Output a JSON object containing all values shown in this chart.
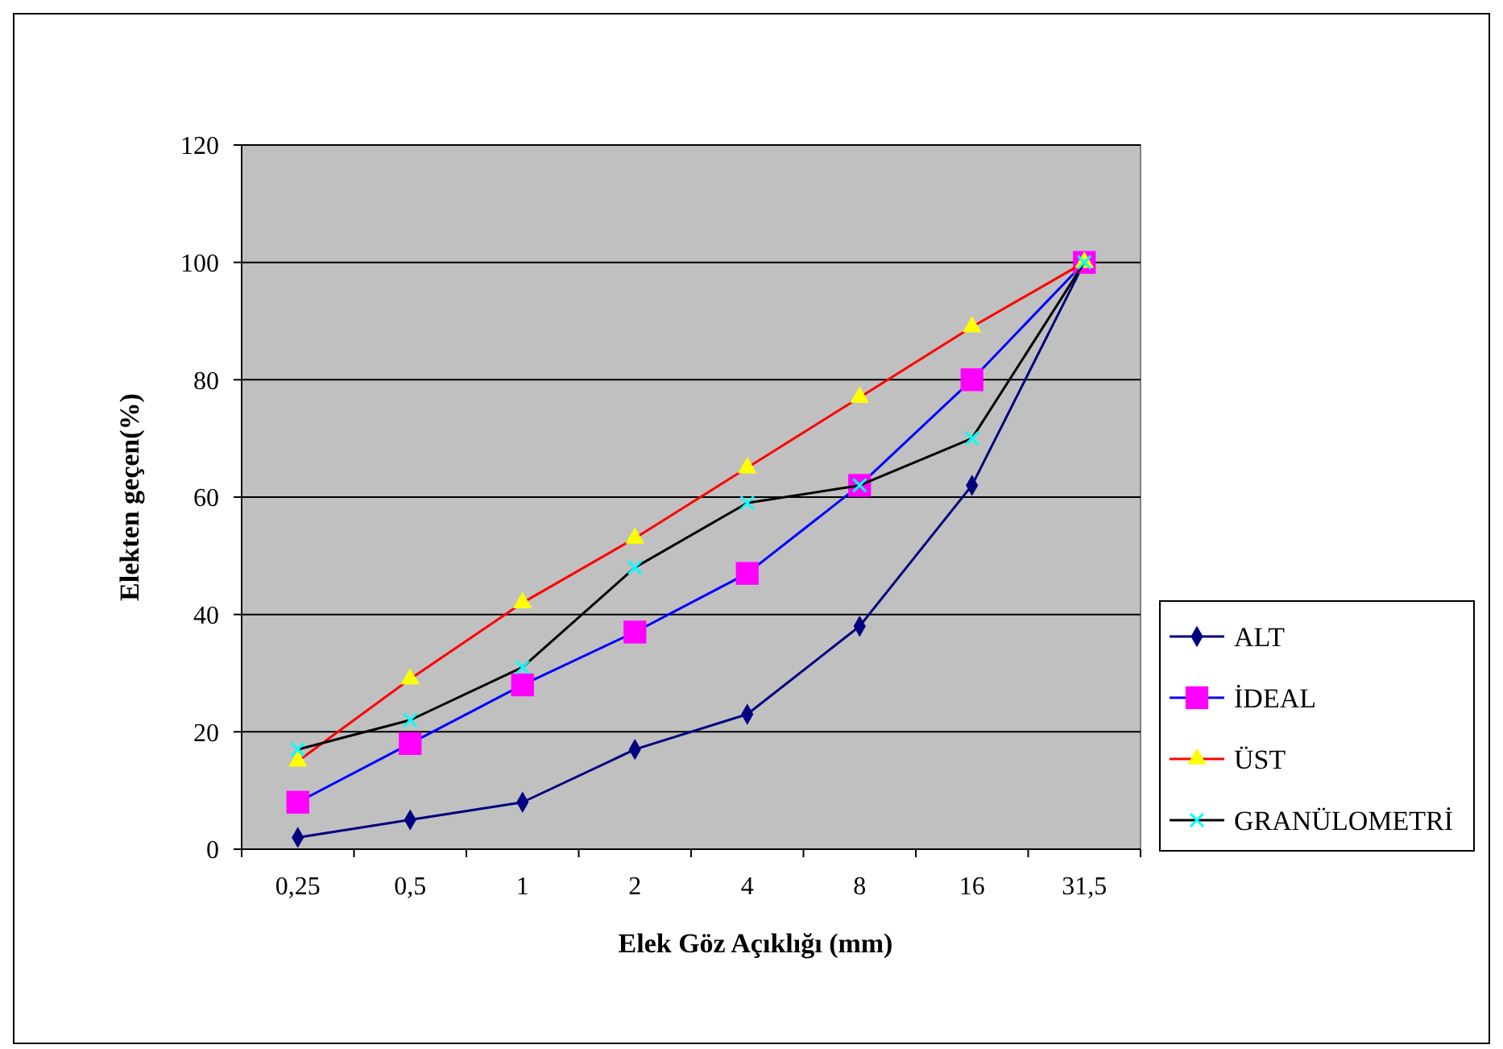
{
  "chart_data": {
    "type": "line",
    "xlabel": "Elek Göz Açıklığı (mm)",
    "ylabel": "Elekten geçen(%)",
    "categories": [
      "0,25",
      "0,5",
      "1",
      "2",
      "4",
      "8",
      "16",
      "31,5"
    ],
    "ylim": [
      0,
      120
    ],
    "yticks": [
      0,
      20,
      40,
      60,
      80,
      100,
      120
    ],
    "grid": "y",
    "legend": "right",
    "line_style": "solid",
    "series": [
      {
        "name": "ALT",
        "color": "#000080",
        "marker": "diamond",
        "colors": [
          "#000080",
          "#000080",
          "#000080",
          "#000080",
          "#000080",
          "#000080",
          "#000080",
          "#000080"
        ],
        "values": [
          2,
          5,
          8,
          17,
          23,
          38,
          62,
          100
        ]
      },
      {
        "name": "İDEAL",
        "color": "#0000ff",
        "marker": "square",
        "colors": [
          "#ff00ff",
          "#ff00ff",
          "#ff00ff",
          "#ff00ff",
          "#ff00ff",
          "#ff00ff",
          "#ff00ff",
          "#ff00ff"
        ],
        "values": [
          8,
          18,
          28,
          37,
          47,
          62,
          80,
          100
        ]
      },
      {
        "name": "ÜST",
        "color": "#ff0000",
        "marker": "triangle",
        "colors": [
          "#ffff00",
          "#ffff00",
          "#ffff00",
          "#ffff00",
          "#ffff00",
          "#ffff00",
          "#ffff00",
          "#ffff00"
        ],
        "values": [
          15,
          29,
          42,
          53,
          65,
          77,
          89,
          100
        ]
      },
      {
        "name": "GRANÜLOMETRİ",
        "color": "#000000",
        "marker": "cross",
        "colors": [
          "#00ffff",
          "#00ffff",
          "#00ffff",
          "#00ffff",
          "#00ffff",
          "#00ffff",
          "#00ffff",
          "#00ffff"
        ],
        "values": [
          17,
          22,
          31,
          48,
          59,
          62,
          70,
          100
        ]
      }
    ]
  }
}
